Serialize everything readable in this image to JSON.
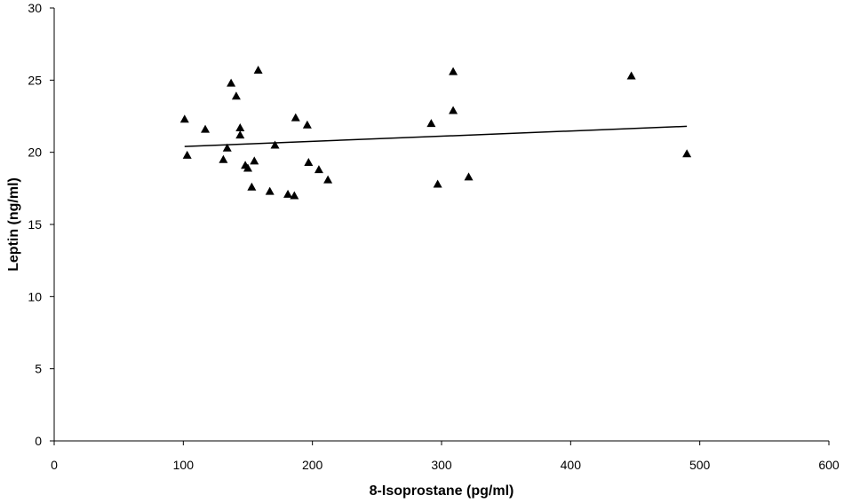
{
  "chart_data": {
    "type": "scatter",
    "title": "",
    "xlabel": "8-Isoprostane (pg/ml)",
    "ylabel": "Leptin (ng/ml)",
    "xlim": [
      0,
      600
    ],
    "ylim": [
      0,
      30
    ],
    "x_ticks": [
      0,
      100,
      200,
      300,
      400,
      500,
      600
    ],
    "y_ticks": [
      0,
      5,
      10,
      15,
      20,
      25,
      30
    ],
    "grid": false,
    "legend": "none",
    "marker": "triangle",
    "marker_color": "#000000",
    "points": [
      [
        101,
        22.3
      ],
      [
        103,
        19.8
      ],
      [
        117,
        21.6
      ],
      [
        131,
        19.5
      ],
      [
        134,
        20.3
      ],
      [
        137,
        24.8
      ],
      [
        141,
        23.9
      ],
      [
        144,
        21.7
      ],
      [
        144,
        21.2
      ],
      [
        148,
        19.1
      ],
      [
        150,
        18.9
      ],
      [
        153,
        17.6
      ],
      [
        155,
        19.4
      ],
      [
        158,
        25.7
      ],
      [
        167,
        17.3
      ],
      [
        171,
        20.5
      ],
      [
        181,
        17.1
      ],
      [
        186,
        17.0
      ],
      [
        187,
        22.4
      ],
      [
        196,
        21.9
      ],
      [
        197,
        19.3
      ],
      [
        205,
        18.8
      ],
      [
        212,
        18.1
      ],
      [
        292,
        22.0
      ],
      [
        297,
        17.8
      ],
      [
        309,
        25.6
      ],
      [
        309,
        22.9
      ],
      [
        321,
        18.3
      ],
      [
        447,
        25.3
      ],
      [
        490,
        19.9
      ]
    ],
    "trendline": {
      "x": [
        101,
        490
      ],
      "y": [
        20.4,
        21.8
      ]
    }
  }
}
